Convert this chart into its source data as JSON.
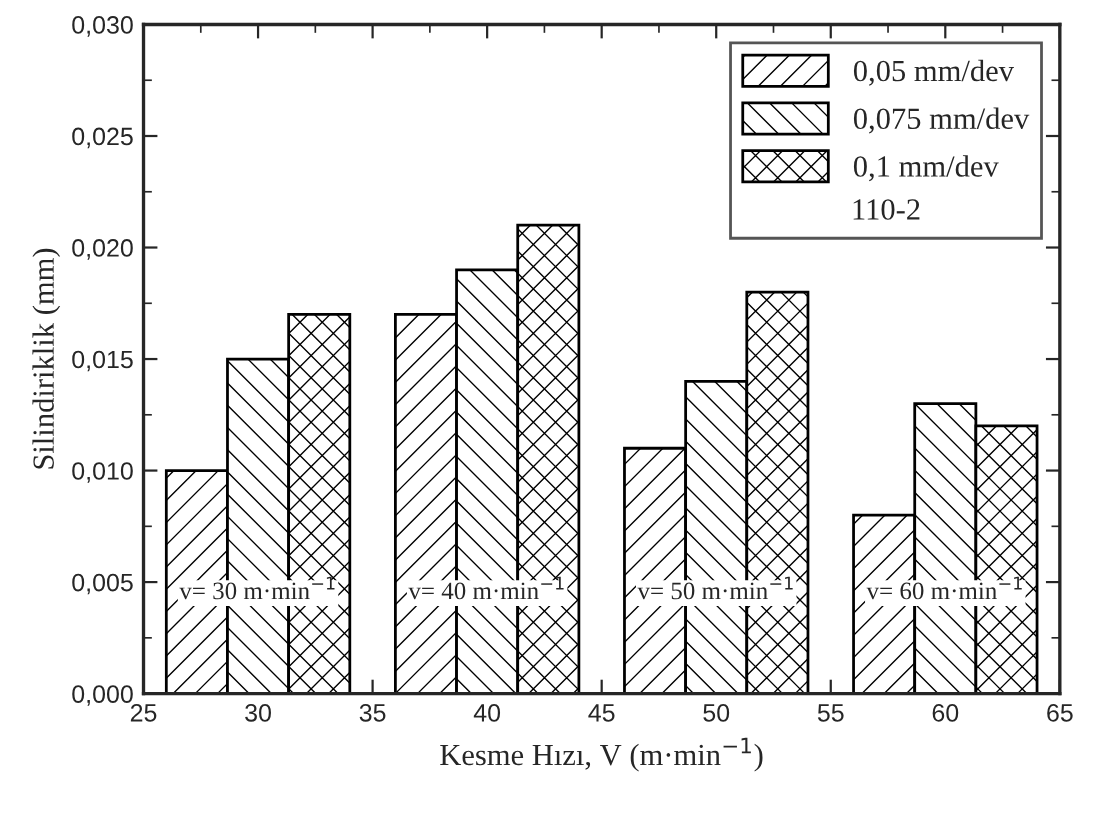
{
  "chart_data": {
    "type": "bar",
    "xlabel": "Kesme Hızı, V (m·min$^{−1}$)",
    "ylabel": "Silindiriklik (mm)",
    "legend_title": "110-2",
    "series": [
      {
        "name": "0,05 mm/dev",
        "color": "#000000",
        "x": [
          27.33,
          37.33,
          47.33,
          57.33
        ],
        "values": [
          0.01,
          0.017,
          0.011,
          0.008
        ]
      },
      {
        "name": "0,075 mm/dev",
        "color": "#000000",
        "x": [
          30,
          40,
          50,
          60
        ],
        "values": [
          0.015,
          0.019,
          0.014,
          0.013
        ]
      },
      {
        "name": "0,1 mm/dev",
        "color": "#000000",
        "x": [
          32.67,
          42.67,
          52.67,
          62.67
        ],
        "values": [
          0.017,
          0.021,
          0.018,
          0.012
        ]
      }
    ],
    "xlim": [
      25,
      65
    ],
    "xticks": [
      25,
      30,
      35,
      40,
      45,
      50,
      55,
      60,
      65
    ],
    "ylim": [
      0,
      0.03
    ],
    "yticks": [
      {
        "value": 0,
        "label": "0,000"
      },
      {
        "value": 0.005,
        "label": "0,005"
      },
      {
        "value": 0.01,
        "label": "0,010"
      },
      {
        "value": 0.015,
        "label": "0,015"
      },
      {
        "value": 0.02,
        "label": "0,020"
      },
      {
        "value": 0.025,
        "label": "0,025"
      },
      {
        "value": 0.03,
        "label": "0,030"
      }
    ],
    "annotations": [
      "v= 30 m·min$^{−1}$",
      "v= 40 m·min$^{−1}$",
      "v= 50 m·min$^{−1}$",
      "v= 60 m·min$^{−1}$"
    ],
    "legend": "top right",
    "grid": false
  }
}
